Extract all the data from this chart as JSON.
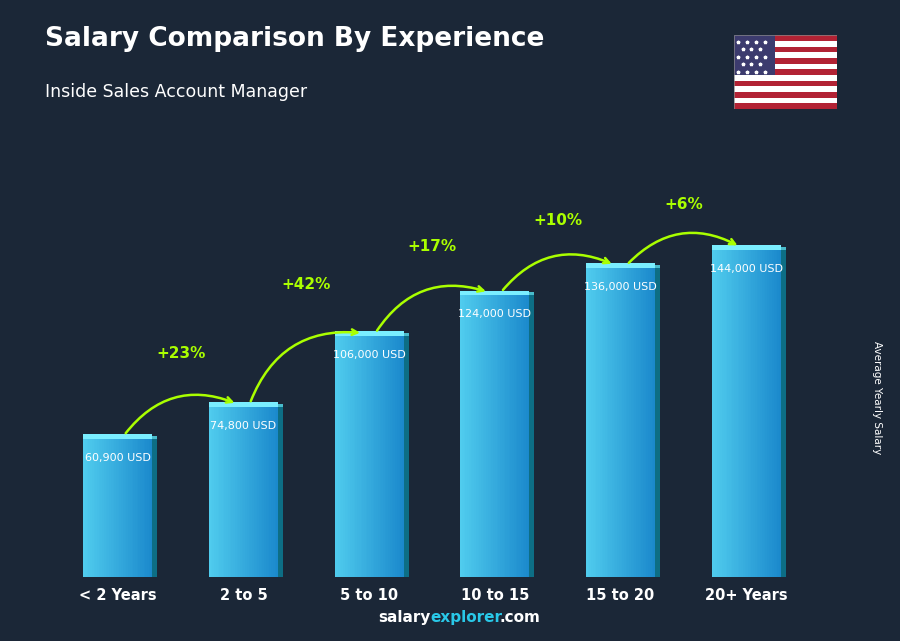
{
  "title": "Salary Comparison By Experience",
  "subtitle": "Inside Sales Account Manager",
  "categories": [
    "< 2 Years",
    "2 to 5",
    "5 to 10",
    "10 to 15",
    "15 to 20",
    "20+ Years"
  ],
  "values": [
    60900,
    74800,
    106000,
    124000,
    136000,
    144000
  ],
  "value_labels": [
    "60,900 USD",
    "74,800 USD",
    "106,000 USD",
    "124,000 USD",
    "136,000 USD",
    "144,000 USD"
  ],
  "pct_changes": [
    "+23%",
    "+42%",
    "+17%",
    "+10%",
    "+6%"
  ],
  "pct_color": "#aaff00",
  "title_color": "#ffffff",
  "subtitle_color": "#ffffff",
  "value_label_color": "#ffffff",
  "ylabel": "Average Yearly Salary",
  "ylim": [
    0,
    175000
  ],
  "bg_color": "#2a3a4a",
  "footer_explorer_color": "#29c8e8",
  "flag_stripe_red": "#B22234",
  "flag_canton": "#3C3B6E"
}
